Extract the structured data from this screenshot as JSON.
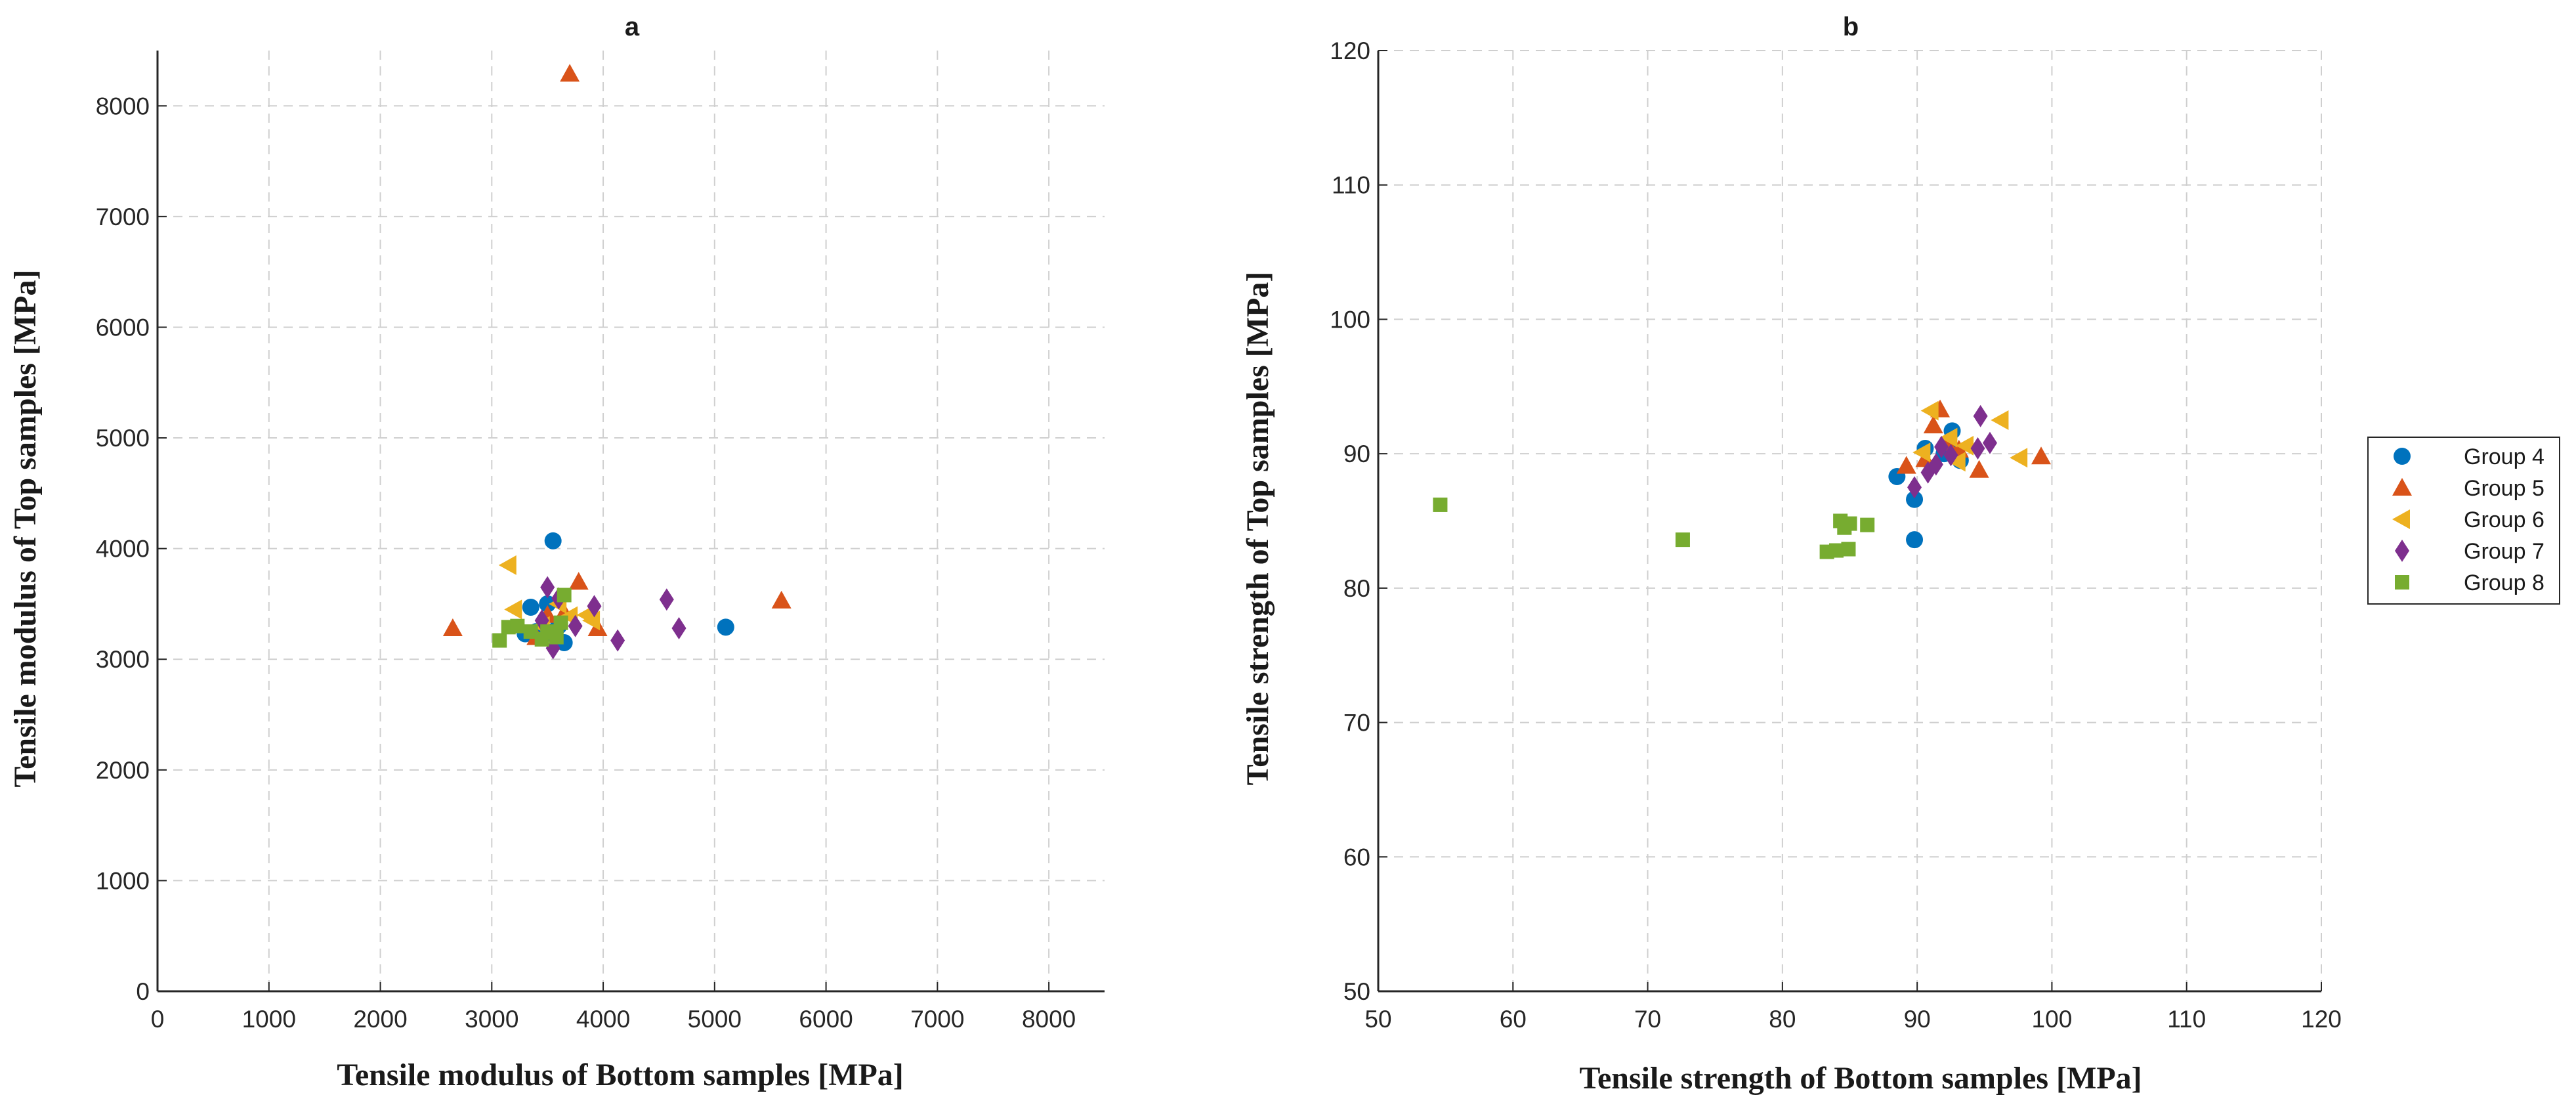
{
  "chart_data": [
    {
      "type": "scatter",
      "title": "a",
      "xlabel": "Tensile modulus of Bottom samples [MPa]",
      "ylabel": "Tensile modulus of Top samples [MPa]",
      "xlim": [
        0,
        8500
      ],
      "ylim": [
        0,
        8500
      ],
      "xticks": [
        0,
        1000,
        2000,
        3000,
        4000,
        5000,
        6000,
        7000,
        8000
      ],
      "yticks": [
        0,
        1000,
        2000,
        3000,
        4000,
        5000,
        6000,
        7000,
        8000
      ],
      "grid": true,
      "series": [
        {
          "name": "Group 4",
          "marker": "circle",
          "color": "#0072BD",
          "points": [
            [
              3550,
              4070
            ],
            [
              3350,
              3470
            ],
            [
              3500,
              3500
            ],
            [
              3400,
              3250
            ],
            [
              3600,
              3300
            ],
            [
              3650,
              3150
            ],
            [
              3550,
              3250
            ],
            [
              5100,
              3290
            ],
            [
              3300,
              3230
            ],
            [
              3450,
              3200
            ]
          ]
        },
        {
          "name": "Group 5",
          "marker": "triangle-up",
          "color": "#D95319",
          "points": [
            [
              3700,
              8290
            ],
            [
              2650,
              3280
            ],
            [
              5600,
              3530
            ],
            [
              3780,
              3700
            ],
            [
              3950,
              3280
            ],
            [
              3500,
              3400
            ],
            [
              3650,
              3420
            ],
            [
              3400,
              3200
            ]
          ]
        },
        {
          "name": "Group 6",
          "marker": "triangle-left",
          "color": "#EDB120",
          "points": [
            [
              3150,
              3850
            ],
            [
              3200,
              3450
            ],
            [
              3700,
              3390
            ],
            [
              3850,
              3400
            ],
            [
              3900,
              3350
            ],
            [
              3600,
              3500
            ],
            [
              3450,
              3300
            ]
          ]
        },
        {
          "name": "Group 7",
          "marker": "diamond",
          "color": "#7E2F8E",
          "points": [
            [
              3500,
              3650
            ],
            [
              3920,
              3480
            ],
            [
              4570,
              3540
            ],
            [
              4680,
              3280
            ],
            [
              4130,
              3170
            ],
            [
              3550,
              3100
            ],
            [
              3750,
              3300
            ],
            [
              3600,
              3550
            ],
            [
              3450,
              3350
            ]
          ]
        },
        {
          "name": "Group 8",
          "marker": "square",
          "color": "#77AC30",
          "points": [
            [
              3070,
              3170
            ],
            [
              3150,
              3290
            ],
            [
              3230,
              3300
            ],
            [
              3350,
              3250
            ],
            [
              3500,
              3250
            ],
            [
              3580,
              3200
            ],
            [
              3620,
              3330
            ],
            [
              3650,
              3580
            ],
            [
              3450,
              3180
            ]
          ]
        }
      ]
    },
    {
      "type": "scatter",
      "title": "b",
      "xlabel": "Tensile strength of Bottom samples [MPa]",
      "ylabel": "Tensile strength of Top samples [MPa]",
      "xlim": [
        50,
        120
      ],
      "ylim": [
        50,
        120
      ],
      "xticks": [
        50,
        60,
        70,
        80,
        90,
        100,
        110,
        120
      ],
      "yticks": [
        50,
        60,
        70,
        80,
        90,
        100,
        110,
        120
      ],
      "grid": true,
      "series": [
        {
          "name": "Group 4",
          "marker": "circle",
          "color": "#0072BD",
          "points": [
            [
              88.5,
              88.3
            ],
            [
              89.8,
              86.6
            ],
            [
              89.8,
              83.6
            ],
            [
              90.6,
              90.4
            ],
            [
              92.2,
              90.6
            ],
            [
              92.6,
              91.7
            ],
            [
              93.2,
              89.5
            ],
            [
              92.0,
              90.0
            ]
          ]
        },
        {
          "name": "Group 5",
          "marker": "triangle-up",
          "color": "#D95319",
          "points": [
            [
              91.7,
              93.3
            ],
            [
              91.2,
              92.1
            ],
            [
              89.2,
              89.1
            ],
            [
              90.6,
              89.6
            ],
            [
              94.6,
              88.8
            ],
            [
              99.2,
              89.8
            ],
            [
              93.1,
              90.3
            ],
            [
              92.2,
              90.8
            ]
          ]
        },
        {
          "name": "Group 6",
          "marker": "triangle-left",
          "color": "#EDB120",
          "points": [
            [
              91.0,
              93.2
            ],
            [
              96.2,
              92.5
            ],
            [
              97.6,
              89.7
            ],
            [
              93.6,
              90.6
            ],
            [
              92.4,
              91.2
            ],
            [
              90.4,
              90.1
            ],
            [
              93.0,
              89.4
            ]
          ]
        },
        {
          "name": "Group 7",
          "marker": "diamond",
          "color": "#7E2F8E",
          "points": [
            [
              94.7,
              92.8
            ],
            [
              95.4,
              90.8
            ],
            [
              94.5,
              90.4
            ],
            [
              89.8,
              87.5
            ],
            [
              90.8,
              88.6
            ],
            [
              91.4,
              89.2
            ],
            [
              92.5,
              89.9
            ],
            [
              91.8,
              90.5
            ]
          ]
        },
        {
          "name": "Group 8",
          "marker": "square",
          "color": "#77AC30",
          "points": [
            [
              54.6,
              86.2
            ],
            [
              72.6,
              83.6
            ],
            [
              83.3,
              82.7
            ],
            [
              84.0,
              82.8
            ],
            [
              84.9,
              82.9
            ],
            [
              84.3,
              85.0
            ],
            [
              85.0,
              84.8
            ],
            [
              86.3,
              84.7
            ],
            [
              84.6,
              84.5
            ]
          ]
        }
      ]
    }
  ],
  "legend": {
    "placement": "right",
    "entries": [
      "Group 4",
      "Group 5",
      "Group 6",
      "Group 7",
      "Group 8"
    ]
  }
}
